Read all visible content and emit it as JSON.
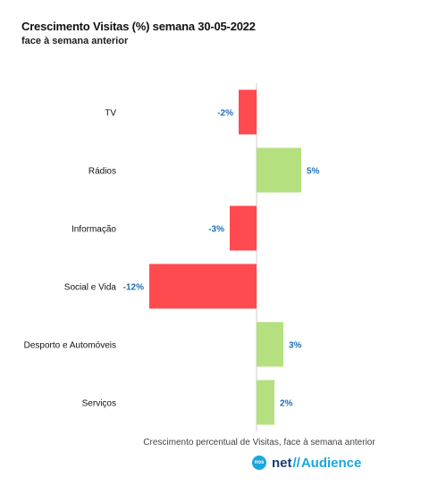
{
  "chart_data": {
    "type": "bar",
    "orientation": "horizontal",
    "title": "Crescimento Visitas (%) semana 30-05-2022",
    "subtitle": "face à semana anterior",
    "xlabel": "Crescimento percentual de Visitas, face à semana anterior",
    "ylabel": "",
    "categories": [
      "TV",
      "Rádios",
      "Informação",
      "Social e Vida",
      "Desporto e Automóveis",
      "Serviços"
    ],
    "values": [
      -2,
      5,
      -3,
      -12,
      3,
      2
    ],
    "value_labels": [
      "-2%",
      "5%",
      "-3%",
      "-12%",
      "3%",
      "2%"
    ],
    "xlim": [
      -12,
      5
    ],
    "grid": false,
    "colors": {
      "positive": "#b5e07f",
      "negative": "#ff4a4f",
      "label": "#1f6fb5",
      "axis": "#cfcfcf"
    }
  },
  "brand": {
    "badge": "nos",
    "net": "net",
    "slash": "//",
    "audience": "Audience"
  }
}
